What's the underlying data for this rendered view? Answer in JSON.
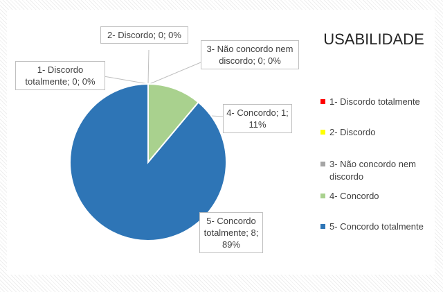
{
  "chart_data": {
    "type": "pie",
    "title": "USABILIDADE",
    "categories": [
      "1- Discordo totalmente",
      "2- Discordo",
      "3- Não concordo nem discordo",
      "4- Concordo",
      "5- Concordo totalmente"
    ],
    "values": [
      0,
      0,
      0,
      1,
      8
    ],
    "value_labels": [
      "1- Discordo totalmente; 0; 0%",
      "2- Discordo; 0; 0%",
      "3- Não concordo nem discordo; 0; 0%",
      "4- Concordo; 1; 11%",
      "5- Concordo totalmente; 8; 89%"
    ],
    "colors": [
      "#ff0000",
      "#ffff00",
      "#a5a5a5",
      "#a9d18e",
      "#2e75b6"
    ],
    "legend": "right"
  }
}
